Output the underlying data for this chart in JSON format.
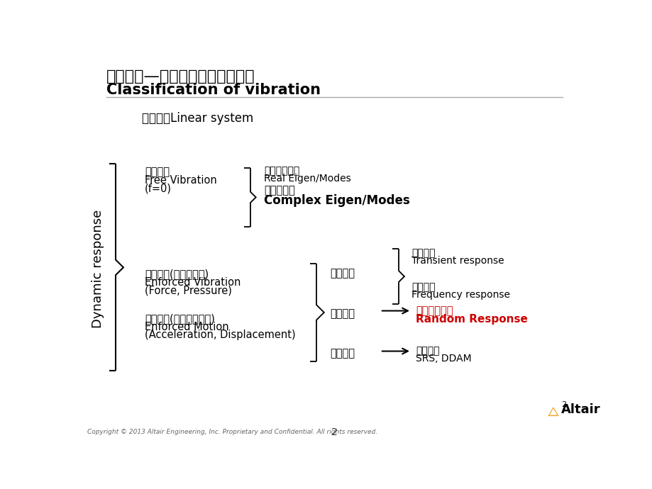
{
  "title_cn": "振动分类—按载荷形式和响应类型",
  "title_en": "Classification of vibration",
  "bg_color": "#ffffff",
  "slide_number": "2",
  "copyright": "Copyright © 2013 Altair Engineering, Inc. Proprietary and Confidential. All rights reserved.",
  "linear_system_label": "线性系统Linear system",
  "dynamic_response_label": "Dynamic response",
  "free_vib_cn": "自由振动",
  "free_vib_line2": "Free Vibration",
  "free_vib_line3": "(f=0)",
  "real_eigen_cn": "正则模态分析",
  "real_eigen_en": "Real Eigen/Modes",
  "complex_eigen_cn": "复模态分析",
  "complex_eigen_en": "Complex Eigen/Modes",
  "enforced_vib_cn": "强迫振动(外力、压强)",
  "enforced_vib_line2": "Enforced Vibration",
  "enforced_vib_line3": "(Force, Pressure)",
  "enforced_mot_cn": "强迫运动(加速度、位移)",
  "enforced_mot_line2": "Enforced Motion",
  "enforced_mot_line3": "(Acceleration, Displacement)",
  "precise_cn": "精确分析",
  "stat_cn": "统计分析",
  "peak_cn": "峰值分析",
  "transient_cn": "瞬态响应",
  "transient_en": "Transient response",
  "freq_cn": "频率响应",
  "freq_en": "Frequency response",
  "random_cn": "随机振动响应",
  "random_en": "Random Response",
  "srs_cn": "响应谱等",
  "srs_en": "SRS, DDAM",
  "colors": {
    "black": "#000000",
    "red": "#cc0000",
    "title_line": "#aaaaaa"
  }
}
